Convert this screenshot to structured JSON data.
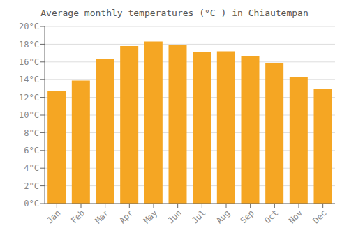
{
  "chart_data": {
    "type": "bar",
    "title": "Average monthly temperatures (°C ) in Chiautempan",
    "categories": [
      "Jan",
      "Feb",
      "Mar",
      "Apr",
      "May",
      "Jun",
      "Jul",
      "Aug",
      "Sep",
      "Oct",
      "Nov",
      "Dec"
    ],
    "values": [
      12.7,
      13.9,
      16.3,
      17.8,
      18.3,
      17.9,
      17.1,
      17.2,
      16.7,
      15.9,
      14.3,
      13.0
    ],
    "color": "#F5A623",
    "ylim": [
      0,
      20
    ],
    "yticks": [
      {
        "value": 0,
        "label": "0°C"
      },
      {
        "value": 2,
        "label": "2°C"
      },
      {
        "value": 4,
        "label": "4°C"
      },
      {
        "value": 6,
        "label": "6°C"
      },
      {
        "value": 8,
        "label": "8°C"
      },
      {
        "value": 10,
        "label": "10°C"
      },
      {
        "value": 12,
        "label": "12°C"
      },
      {
        "value": 14,
        "label": "14°C"
      },
      {
        "value": 16,
        "label": "16°C"
      },
      {
        "value": 18,
        "label": "18°C"
      },
      {
        "value": 20,
        "label": "20°C"
      }
    ],
    "grid": true
  }
}
